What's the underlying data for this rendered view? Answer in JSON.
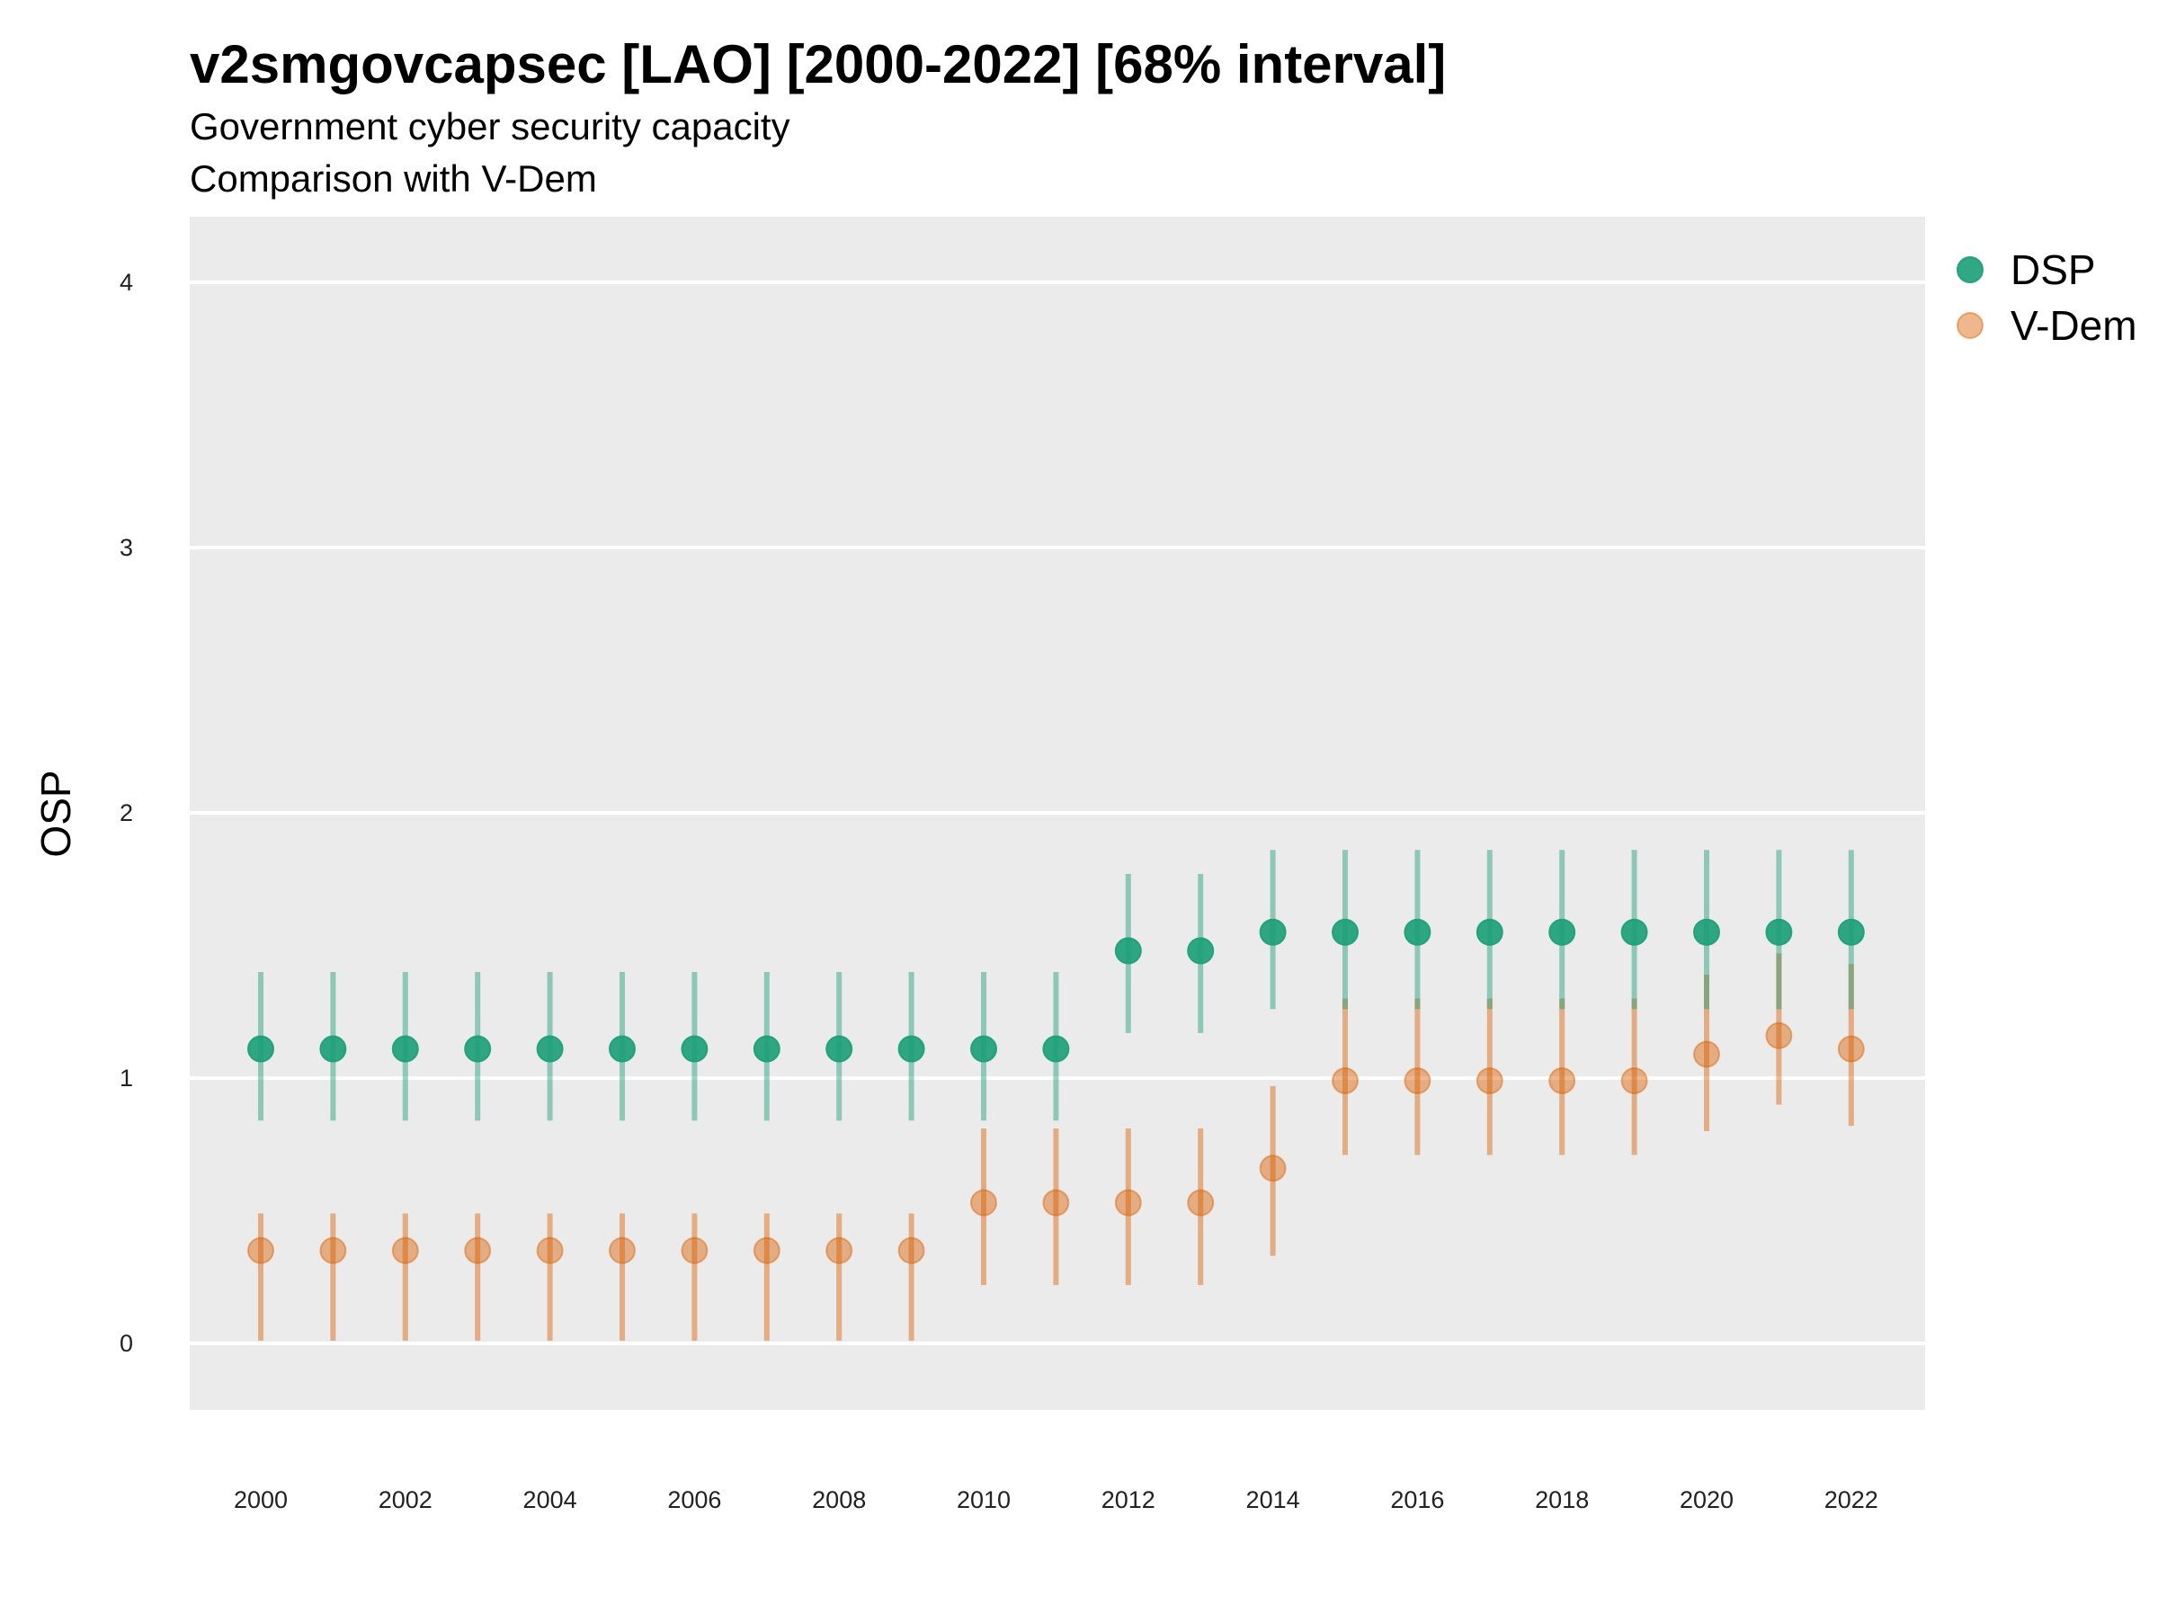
{
  "chart_data": {
    "type": "scatter",
    "title": "v2smgovcapsec [LAO] [2000-2022] [68% interval]",
    "subtitle": "Government cyber security capacity",
    "subtitle2": "Comparison with V-Dem",
    "xlabel": "",
    "ylabel": "OSP",
    "x": [
      2000,
      2001,
      2002,
      2003,
      2004,
      2005,
      2006,
      2007,
      2008,
      2009,
      2010,
      2011,
      2012,
      2013,
      2014,
      2015,
      2016,
      2017,
      2018,
      2019,
      2020,
      2021,
      2022
    ],
    "x_tick_labels": [
      "2000",
      "2002",
      "2004",
      "2006",
      "2008",
      "2010",
      "2012",
      "2014",
      "2016",
      "2018",
      "2020",
      "2022"
    ],
    "y_tick_labels": [
      "0",
      "1",
      "2",
      "3",
      "4"
    ],
    "ylim": [
      -0.25,
      4.25
    ],
    "grid": true,
    "legend_position": "right",
    "series": [
      {
        "name": "DSP",
        "color": "#1b9e77",
        "values": [
          1.11,
          1.11,
          1.11,
          1.11,
          1.11,
          1.11,
          1.11,
          1.11,
          1.11,
          1.11,
          1.11,
          1.11,
          1.48,
          1.48,
          1.55,
          1.55,
          1.55,
          1.55,
          1.55,
          1.55,
          1.55,
          1.55,
          1.55
        ],
        "lower": [
          0.84,
          0.84,
          0.84,
          0.84,
          0.84,
          0.84,
          0.84,
          0.84,
          0.84,
          0.84,
          0.84,
          0.84,
          1.17,
          1.17,
          1.26,
          1.26,
          1.26,
          1.26,
          1.26,
          1.26,
          1.26,
          1.26,
          1.26
        ],
        "upper": [
          1.4,
          1.4,
          1.4,
          1.4,
          1.4,
          1.4,
          1.4,
          1.4,
          1.4,
          1.4,
          1.4,
          1.4,
          1.77,
          1.77,
          1.86,
          1.86,
          1.86,
          1.86,
          1.86,
          1.86,
          1.86,
          1.86,
          1.86
        ]
      },
      {
        "name": "V-Dem",
        "color": "#d95f02",
        "values": [
          0.35,
          0.35,
          0.35,
          0.35,
          0.35,
          0.35,
          0.35,
          0.35,
          0.35,
          0.35,
          0.53,
          0.53,
          0.53,
          0.53,
          0.66,
          0.99,
          0.99,
          0.99,
          0.99,
          0.99,
          1.09,
          1.16,
          1.11
        ],
        "lower": [
          0.01,
          0.01,
          0.01,
          0.01,
          0.01,
          0.01,
          0.01,
          0.01,
          0.01,
          0.01,
          0.22,
          0.22,
          0.22,
          0.22,
          0.33,
          0.71,
          0.71,
          0.71,
          0.71,
          0.71,
          0.8,
          0.9,
          0.82
        ],
        "upper": [
          0.49,
          0.49,
          0.49,
          0.49,
          0.49,
          0.49,
          0.49,
          0.49,
          0.49,
          0.49,
          0.81,
          0.81,
          0.81,
          0.81,
          0.97,
          1.3,
          1.3,
          1.3,
          1.3,
          1.3,
          1.39,
          1.47,
          1.43
        ]
      }
    ]
  }
}
